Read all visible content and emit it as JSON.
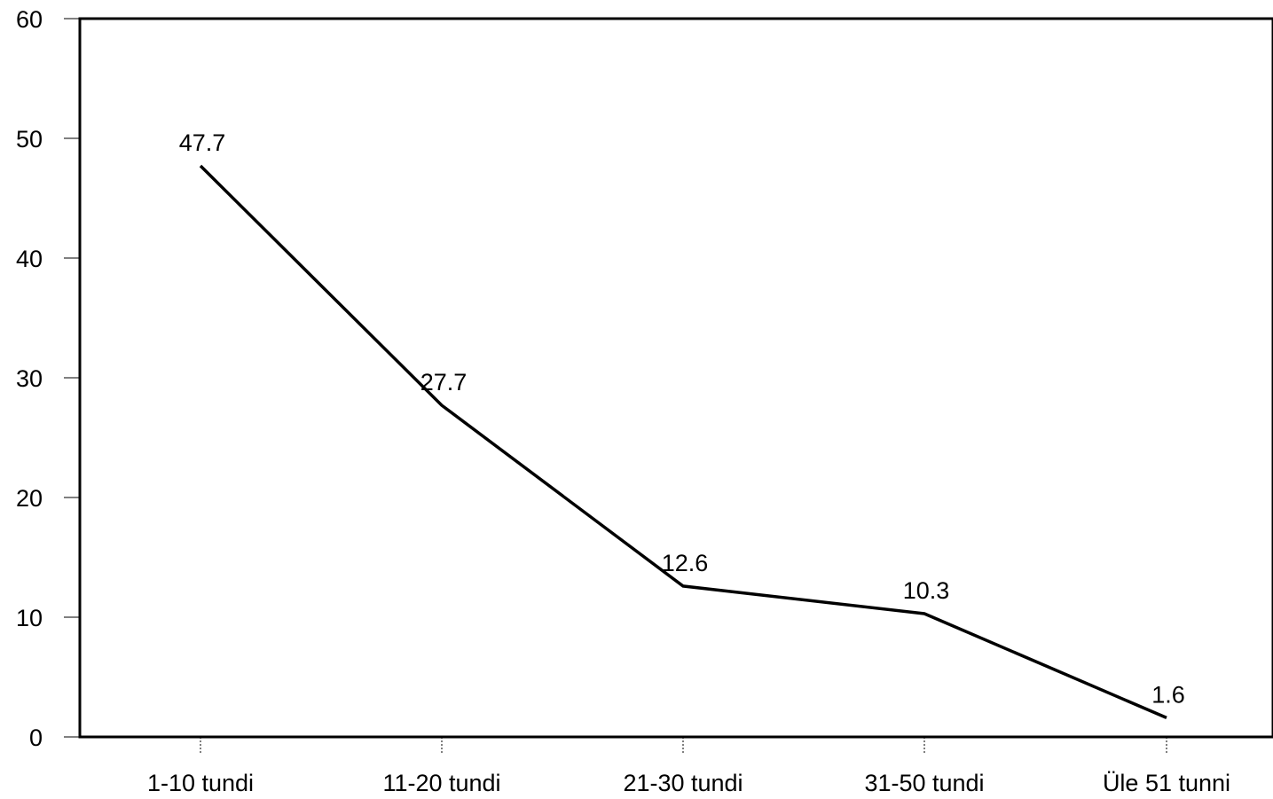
{
  "chart_data": {
    "type": "line",
    "title": "",
    "xlabel": "",
    "ylabel": "",
    "categories": [
      "1-10 tundi",
      "11-20 tundi",
      "21-30 tundi",
      "31-50 tundi",
      "Üle 51 tunni"
    ],
    "series": [
      {
        "values": [
          47.7,
          27.7,
          12.6,
          10.3,
          1.6
        ],
        "labels": [
          "47.7",
          "27.7",
          "12.6",
          "10.3",
          "1.6"
        ],
        "color": "#000000"
      }
    ],
    "ylim": [
      0,
      60
    ],
    "yticks": [
      0,
      10,
      20,
      30,
      40,
      50,
      60
    ],
    "ytick_labels": [
      "0",
      "10",
      "20",
      "30",
      "40",
      "50",
      "60"
    ],
    "grid": false,
    "legend": "none"
  }
}
